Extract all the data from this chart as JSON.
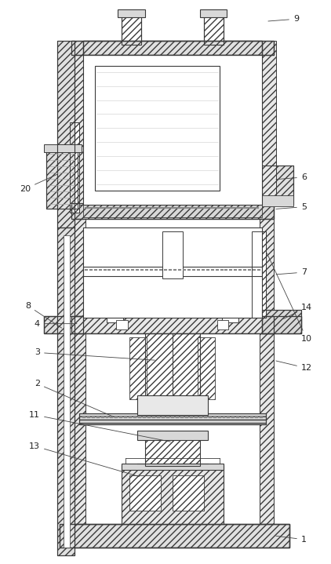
{
  "background_color": "#ffffff",
  "line_color": "#3a3a3a",
  "figsize": [
    4.22,
    7.19
  ],
  "dpi": 100,
  "hatch": "////",
  "label_fs": 9,
  "ann_fs": 8
}
